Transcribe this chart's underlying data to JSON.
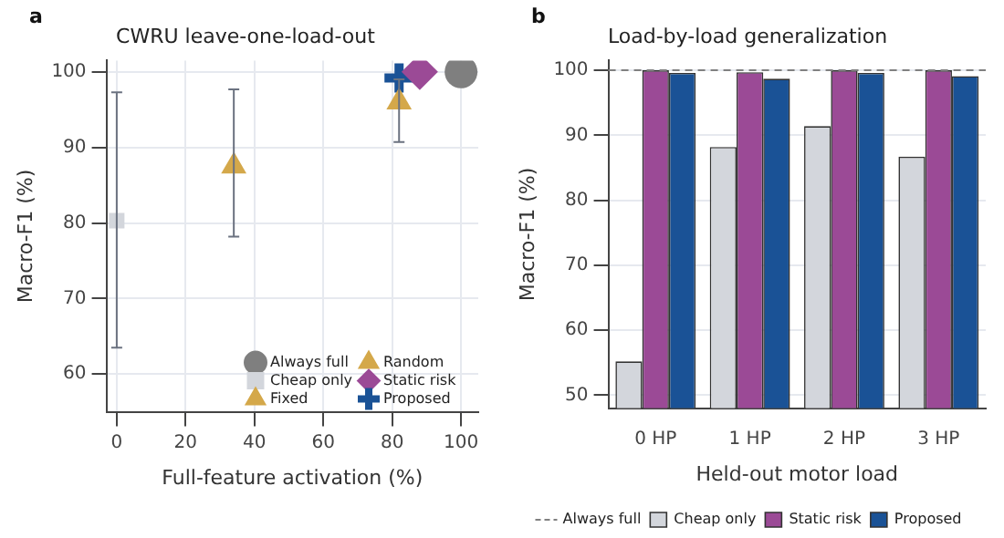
{
  "chart_data": [
    {
      "type": "scatter",
      "title": "CWRU leave-one-load-out",
      "xlabel": "Full-feature activation (%)",
      "ylabel": "Macro-F1 (%)",
      "annotations": [
        "a"
      ],
      "xlim": [
        -3,
        105
      ],
      "ylim": [
        55,
        101.5
      ],
      "xticks": [
        0,
        20,
        40,
        60,
        80,
        100
      ],
      "yticks": [
        60,
        70,
        80,
        90,
        100
      ],
      "grid": true,
      "legend": "bottom right",
      "series": [
        {
          "name": "Always full",
          "color": "#7f7f7f",
          "marker": "circle",
          "x": [
            100
          ],
          "values": [
            100
          ]
        },
        {
          "name": "Cheap only",
          "color": "#d3d6dc",
          "marker": "square",
          "x": [
            0
          ],
          "values": [
            80.3
          ],
          "errors": [
            [
              63.5,
              97.3
            ]
          ]
        },
        {
          "name": "Fixed",
          "color": "#d4a84a",
          "marker": "triangle",
          "x": [
            34
          ],
          "values": [
            87.5
          ],
          "errors": [
            [
              78.2,
              97.7
            ]
          ]
        },
        {
          "name": "Random",
          "color": "#d4a84a",
          "marker": "triangle",
          "x": [
            82
          ],
          "values": [
            96
          ],
          "errors": [
            [
              90.7,
              99
            ]
          ]
        },
        {
          "name": "Static risk",
          "color": "#9b4a96",
          "marker": "diamond",
          "x": [
            88
          ],
          "values": [
            100
          ]
        },
        {
          "name": "Proposed",
          "color": "#1a5296",
          "marker": "cross",
          "x": [
            82
          ],
          "values": [
            99.2
          ]
        }
      ]
    },
    {
      "type": "bar",
      "title": "Load-by-load generalization",
      "xlabel": "Held-out motor load",
      "ylabel": "Macro-F1 (%)",
      "annotations": [
        "b"
      ],
      "categories": [
        "0 HP",
        "1 HP",
        "2 HP",
        "3 HP"
      ],
      "ylim": [
        48,
        101.5
      ],
      "yticks": [
        50,
        60,
        70,
        80,
        90,
        100
      ],
      "grid": "y",
      "legend": "bottom",
      "ref_lines": [
        {
          "axis": "y",
          "value": 100,
          "label": "Always full",
          "color": "#808080",
          "line_style": "dashed"
        }
      ],
      "series": [
        {
          "name": "Cheap only",
          "color": "#d3d6dc",
          "values": [
            55.2,
            88.2,
            91.4,
            86.7
          ]
        },
        {
          "name": "Static risk",
          "color": "#9b4a96",
          "values": [
            100,
            99.7,
            100,
            100
          ]
        },
        {
          "name": "Proposed",
          "color": "#1a5296",
          "values": [
            99.6,
            98.7,
            99.6,
            99.1
          ]
        }
      ]
    }
  ]
}
